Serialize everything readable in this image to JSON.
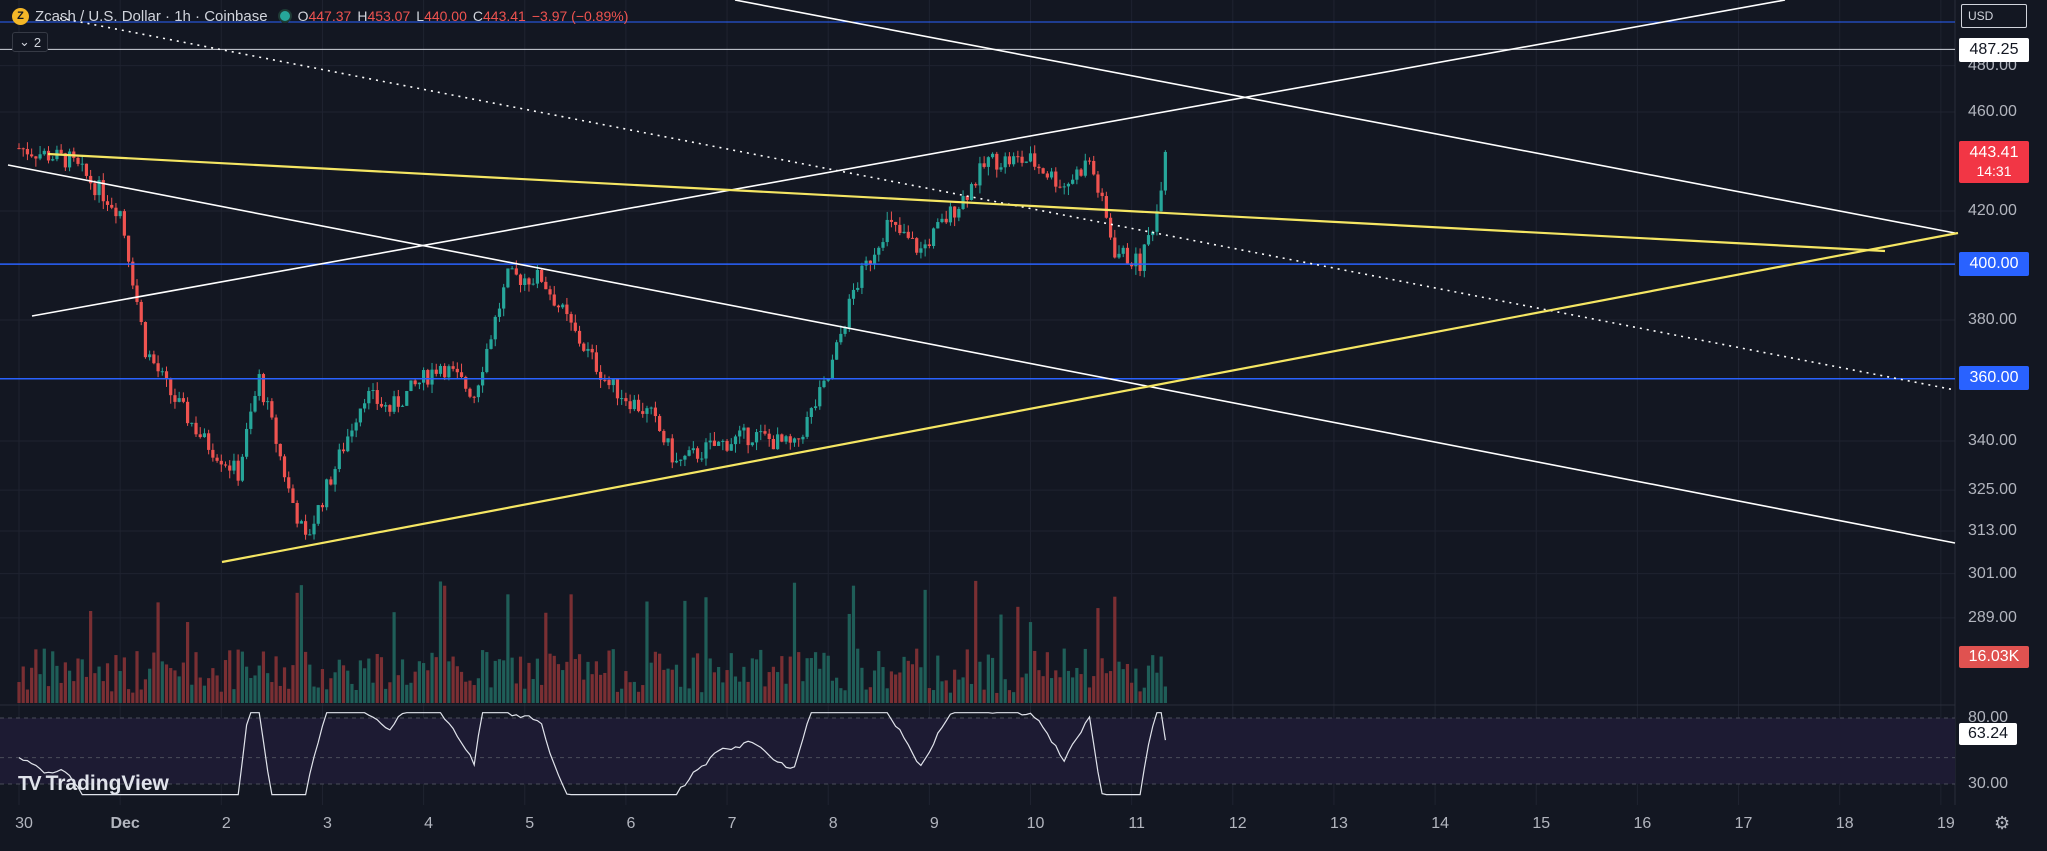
{
  "header": {
    "symbol": "Zcash / U.S. Dollar · 1h · Coinbase",
    "coin_icon_glyph": "Z",
    "open_key": "O",
    "open": "447.37",
    "high_key": "H",
    "high": "453.07",
    "low_key": "L",
    "low": "440.00",
    "close_key": "C",
    "close": "443.41",
    "change": "−3.97 (−0.89%)",
    "indicator_count": "2"
  },
  "currency": "USD",
  "price_axis": {
    "ticks": [
      "480.00",
      "460.00",
      "420.00",
      "380.00",
      "340.00",
      "325.00",
      "313.00",
      "301.00",
      "289.00"
    ],
    "tags": {
      "level_high": "487.25",
      "level_400": "400.00",
      "level_360": "360.00"
    },
    "last_price": "443.41",
    "countdown": "14:31",
    "volume": "16.03K"
  },
  "rsi": {
    "upper": "80.00",
    "lower": "30.00",
    "value": "63.24"
  },
  "time_axis": {
    "labels": [
      "30",
      "Dec",
      "2",
      "3",
      "4",
      "5",
      "6",
      "7",
      "8",
      "9",
      "10",
      "11",
      "12",
      "13",
      "14",
      "15",
      "16",
      "17",
      "18",
      "19"
    ]
  },
  "branding": "TradingView",
  "colors": {
    "background": "#131722",
    "up": "#26a69a",
    "down": "#ef5350",
    "trendline_yellow": "#f5e663",
    "trendline_white": "#ffffff",
    "horizontal_blue": "#2962ff"
  },
  "chart_data": {
    "type": "candlestick",
    "symbol": "Zcash / U.S. Dollar",
    "interval": "1h",
    "x_domain": [
      "Nov 30",
      "Dec 19"
    ],
    "y_scale": "log",
    "horizontal_levels": [
      487.25,
      400.0,
      360.0
    ],
    "price_path": [
      [
        "Nov 30 00:00",
        445
      ],
      [
        "Nov 30 12:00",
        440
      ],
      [
        "Dec 1 00:00",
        420
      ],
      [
        "Dec 1 06:00",
        370
      ],
      [
        "Dec 1 12:00",
        355
      ],
      [
        "Dec 1 20:00",
        340
      ],
      [
        "Dec 2 04:00",
        330
      ],
      [
        "Dec 2 09:00",
        360
      ],
      [
        "Dec 2 16:00",
        325
      ],
      [
        "Dec 2 20:00",
        310
      ],
      [
        "Dec 3 04:00",
        335
      ],
      [
        "Dec 3 10:00",
        355
      ],
      [
        "Dec 3 16:00",
        350
      ],
      [
        "Dec 4 04:00",
        365
      ],
      [
        "Dec 4 12:00",
        355
      ],
      [
        "Dec 4 20:00",
        395
      ],
      [
        "Dec 5 04:00",
        395
      ],
      [
        "Dec 5 12:00",
        375
      ],
      [
        "Dec 5 20:00",
        358
      ],
      [
        "Dec 6 06:00",
        348
      ],
      [
        "Dec 6 12:00",
        333
      ],
      [
        "Dec 6 20:00",
        338
      ],
      [
        "Dec 7 06:00",
        342
      ],
      [
        "Dec 7 16:00",
        338
      ],
      [
        "Dec 8 00:00",
        360
      ],
      [
        "Dec 8 06:00",
        390
      ],
      [
        "Dec 8 14:00",
        415
      ],
      [
        "Dec 8 22:00",
        405
      ],
      [
        "Dec 9 08:00",
        425
      ],
      [
        "Dec 9 14:00",
        440
      ],
      [
        "Dec 10 00:00",
        440
      ],
      [
        "Dec 10 08:00",
        430
      ],
      [
        "Dec 10 14:00",
        440
      ],
      [
        "Dec 10 20:00",
        405
      ],
      [
        "Dec 11 02:00",
        400
      ],
      [
        "Dec 11 06:00",
        420
      ],
      [
        "Dec 11 08:00",
        443.41
      ]
    ],
    "rsi": {
      "upper": 80,
      "lower": 30,
      "last": 63.24
    },
    "last_volume": "16.03K"
  }
}
